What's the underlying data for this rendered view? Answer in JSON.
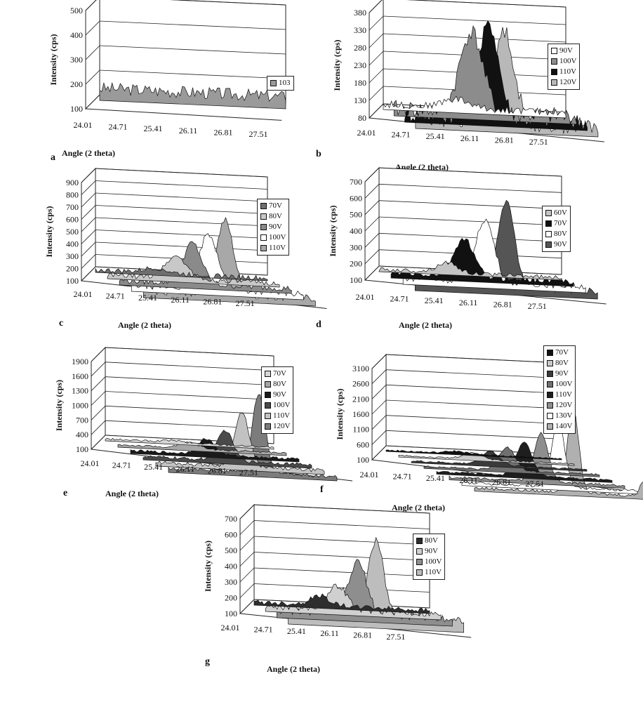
{
  "chart_data": [
    {
      "id": "a",
      "type": "line",
      "panel_letter": "a",
      "yticks": [
        "500",
        "400",
        "300",
        "200",
        "100"
      ],
      "xticks": [
        "24.01",
        "24.71",
        "25.41",
        "26.11",
        "26.81",
        "27.51"
      ],
      "ylabel": "Intensity (cps)",
      "xlabel": "Angle (2 theta)",
      "ylim": [
        100,
        500
      ],
      "xlim": [
        24.01,
        28.0
      ],
      "series": [
        {
          "name": "103",
          "color": "#9a9a9a",
          "base": 150,
          "peak": 0,
          "center": 25.9,
          "width": 0.3,
          "noise": 25
        }
      ]
    },
    {
      "id": "b",
      "type": "line",
      "panel_letter": "b",
      "yticks": [
        "380",
        "330",
        "280",
        "230",
        "180",
        "130",
        "80"
      ],
      "xticks": [
        "24.01",
        "24.71",
        "25.41",
        "26.11",
        "26.81",
        "27.51"
      ],
      "ylabel": "Intensity (cps)",
      "xlabel": "Angle (2 theta)",
      "ylim": [
        80,
        380
      ],
      "xlim": [
        24.01,
        28.0
      ],
      "series": [
        {
          "name": "90V",
          "color": "#ffffff",
          "base": 95,
          "peak": 25,
          "center": 25.6,
          "width": 0.4,
          "noise": 10
        },
        {
          "name": "100V",
          "color": "#8c8c8c",
          "base": 100,
          "peak": 230,
          "center": 25.7,
          "width": 0.35,
          "noise": 25
        },
        {
          "name": "110V",
          "color": "#111111",
          "base": 105,
          "peak": 270,
          "center": 25.85,
          "width": 0.3,
          "noise": 25
        },
        {
          "name": "120V",
          "color": "#b8b8b8",
          "base": 110,
          "peak": 265,
          "center": 25.95,
          "width": 0.3,
          "noise": 25
        }
      ]
    },
    {
      "id": "c",
      "type": "line",
      "panel_letter": "c",
      "yticks": [
        "900",
        "800",
        "700",
        "600",
        "500",
        "400",
        "300",
        "200",
        "100"
      ],
      "xticks": [
        "24.01",
        "24.71",
        "25.41",
        "26.11",
        "26.81",
        "27.51"
      ],
      "ylabel": "Intensity (cps)",
      "xlabel": "Angle (2 theta)",
      "ylim": [
        100,
        900
      ],
      "xlim": [
        24.01,
        28.0
      ],
      "series": [
        {
          "name": "70V",
          "color": "#6e6e6e",
          "base": 120,
          "peak": 40,
          "center": 25.4,
          "width": 0.35,
          "noise": 20
        },
        {
          "name": "80V",
          "color": "#c8c8c8",
          "base": 130,
          "peak": 180,
          "center": 25.6,
          "width": 0.35,
          "noise": 20
        },
        {
          "name": "90V",
          "color": "#8a8a8a",
          "base": 140,
          "peak": 330,
          "center": 25.7,
          "width": 0.3,
          "noise": 25
        },
        {
          "name": "100V",
          "color": "#ffffff",
          "base": 150,
          "peak": 450,
          "center": 25.8,
          "width": 0.3,
          "noise": 25
        },
        {
          "name": "110V",
          "color": "#a8a8a8",
          "base": 160,
          "peak": 600,
          "center": 25.9,
          "width": 0.28,
          "noise": 30
        }
      ]
    },
    {
      "id": "d",
      "type": "line",
      "panel_letter": "d",
      "yticks": [
        "700",
        "600",
        "500",
        "400",
        "300",
        "200",
        "100"
      ],
      "xticks": [
        "24.01",
        "24.71",
        "25.41",
        "26.11",
        "26.81",
        "27.51"
      ],
      "ylabel": "Intensity (cps)",
      "xlabel": "Angle (2 theta)",
      "ylim": [
        100,
        700
      ],
      "xlim": [
        24.01,
        28.0
      ],
      "series": [
        {
          "name": "60V",
          "color": "#c4c4c4",
          "base": 115,
          "peak": 60,
          "center": 25.5,
          "width": 0.3,
          "noise": 12
        },
        {
          "name": "70V",
          "color": "#111111",
          "base": 130,
          "peak": 230,
          "center": 25.6,
          "width": 0.3,
          "noise": 18
        },
        {
          "name": "80V",
          "color": "#ffffff",
          "base": 140,
          "peak": 380,
          "center": 25.8,
          "width": 0.28,
          "noise": 20
        },
        {
          "name": "90V",
          "color": "#555555",
          "base": 150,
          "peak": 530,
          "center": 26.0,
          "width": 0.25,
          "noise": 22
        }
      ]
    },
    {
      "id": "e",
      "type": "line",
      "panel_letter": "e",
      "yticks": [
        "1900",
        "1600",
        "1300",
        "1000",
        "700",
        "400",
        "100"
      ],
      "xticks": [
        "24.01",
        "24.71",
        "25.41",
        "26.11",
        "26.81",
        "27.51"
      ],
      "ylabel": "Intensity (cps)",
      "xlabel": "Angle (2 theta)",
      "ylim": [
        100,
        1900
      ],
      "xlim": [
        24.01,
        28.0
      ],
      "series": [
        {
          "name": "70V",
          "color": "#d6d6d6",
          "base": 140,
          "peak": 40,
          "center": 25.6,
          "width": 0.3,
          "noise": 20
        },
        {
          "name": "80V",
          "color": "#a6a6a6",
          "base": 150,
          "peak": 120,
          "center": 25.7,
          "width": 0.3,
          "noise": 20
        },
        {
          "name": "90V",
          "color": "#1a1a1a",
          "base": 160,
          "peak": 320,
          "center": 25.8,
          "width": 0.28,
          "noise": 25
        },
        {
          "name": "100V",
          "color": "#4a4a4a",
          "base": 170,
          "peak": 620,
          "center": 25.95,
          "width": 0.26,
          "noise": 30
        },
        {
          "name": "110V",
          "color": "#c2c2c2",
          "base": 180,
          "peak": 1100,
          "center": 26.05,
          "width": 0.24,
          "noise": 35
        },
        {
          "name": "120V",
          "color": "#7c7c7c",
          "base": 190,
          "peak": 1600,
          "center": 26.15,
          "width": 0.22,
          "noise": 40
        }
      ]
    },
    {
      "id": "f",
      "type": "line",
      "panel_letter": "f",
      "yticks": [
        "3100",
        "2600",
        "2100",
        "1600",
        "1100",
        "600",
        "100"
      ],
      "xticks": [
        "24.01",
        "24.71",
        "25.41",
        "26.11",
        "26.81",
        "27.51"
      ],
      "ylabel": "Intensity (cps)",
      "xlabel": "Angle (2 theta)",
      "ylim": [
        100,
        3100
      ],
      "xlim": [
        24.01,
        28.0
      ],
      "series": [
        {
          "name": "70V",
          "color": "#111111",
          "base": 140,
          "peak": 80,
          "center": 25.6,
          "width": 0.3,
          "noise": 25
        },
        {
          "name": "80V",
          "color": "#c9c9c9",
          "base": 150,
          "peak": 200,
          "center": 25.7,
          "width": 0.3,
          "noise": 25
        },
        {
          "name": "90V",
          "color": "#3a3a3a",
          "base": 160,
          "peak": 450,
          "center": 25.8,
          "width": 0.28,
          "noise": 30
        },
        {
          "name": "100V",
          "color": "#707070",
          "base": 170,
          "peak": 750,
          "center": 25.9,
          "width": 0.26,
          "noise": 30
        },
        {
          "name": "110V",
          "color": "#1e1e1e",
          "base": 180,
          "peak": 1100,
          "center": 26.0,
          "width": 0.24,
          "noise": 35
        },
        {
          "name": "120V",
          "color": "#8e8e8e",
          "base": 190,
          "peak": 1600,
          "center": 26.1,
          "width": 0.22,
          "noise": 40
        },
        {
          "name": "130V",
          "color": "#ffffff",
          "base": 200,
          "peak": 2200,
          "center": 26.2,
          "width": 0.2,
          "noise": 45
        },
        {
          "name": "140V",
          "color": "#b0b0b0",
          "base": 210,
          "peak": 2800,
          "center": 26.25,
          "width": 0.18,
          "noise": 50,
          "peak2": 500,
          "center2": 27.85,
          "width2": 0.12
        }
      ]
    },
    {
      "id": "g",
      "type": "line",
      "panel_letter": "g",
      "yticks": [
        "700",
        "600",
        "500",
        "400",
        "300",
        "200",
        "100"
      ],
      "xticks": [
        "24.01",
        "24.71",
        "25.41",
        "26.11",
        "26.81",
        "27.51"
      ],
      "ylabel": "Intensity (cps)",
      "xlabel": "Angle (2 theta)",
      "ylim": [
        100,
        700
      ],
      "xlim": [
        24.01,
        28.0
      ],
      "series": [
        {
          "name": "80V",
          "color": "#2e2e2e",
          "base": 120,
          "peak": 60,
          "center": 25.5,
          "width": 0.3,
          "noise": 15
        },
        {
          "name": "90V",
          "color": "#d0d0d0",
          "base": 135,
          "peak": 150,
          "center": 25.65,
          "width": 0.3,
          "noise": 20
        },
        {
          "name": "100V",
          "color": "#8e8e8e",
          "base": 150,
          "peak": 330,
          "center": 25.85,
          "width": 0.28,
          "noise": 25
        },
        {
          "name": "110V",
          "color": "#bdbdbd",
          "base": 170,
          "peak": 490,
          "center": 26.0,
          "width": 0.25,
          "noise": 30
        }
      ]
    }
  ]
}
